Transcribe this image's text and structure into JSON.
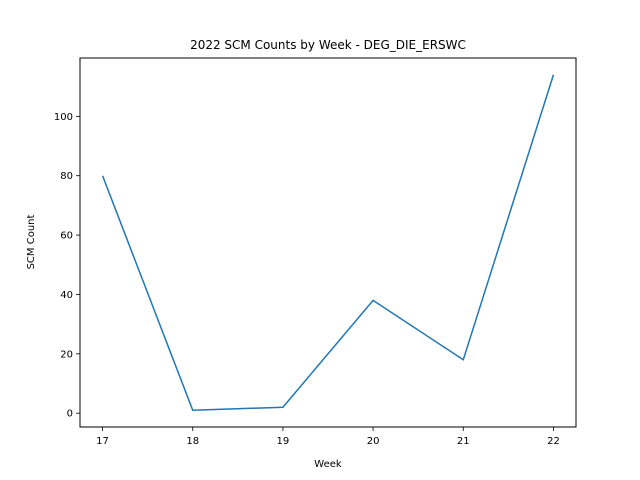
{
  "chart_data": {
    "type": "line",
    "title": "2022 SCM Counts by Week - DEG_DIE_ERSWC",
    "xlabel": "Week",
    "ylabel": "SCM Count",
    "x": [
      17,
      18,
      19,
      20,
      21,
      22
    ],
    "series": [
      {
        "values": [
          80,
          1,
          2,
          38,
          18,
          114
        ]
      }
    ],
    "xlim": [
      16.75,
      22.25
    ],
    "ylim": [
      -4.65,
      119.65
    ],
    "xticks": [
      "17",
      "18",
      "19",
      "20",
      "21",
      "22"
    ],
    "yticks": [
      "0",
      "20",
      "40",
      "60",
      "80",
      "100"
    ],
    "grid": false,
    "line_color": "#1f77b4"
  }
}
